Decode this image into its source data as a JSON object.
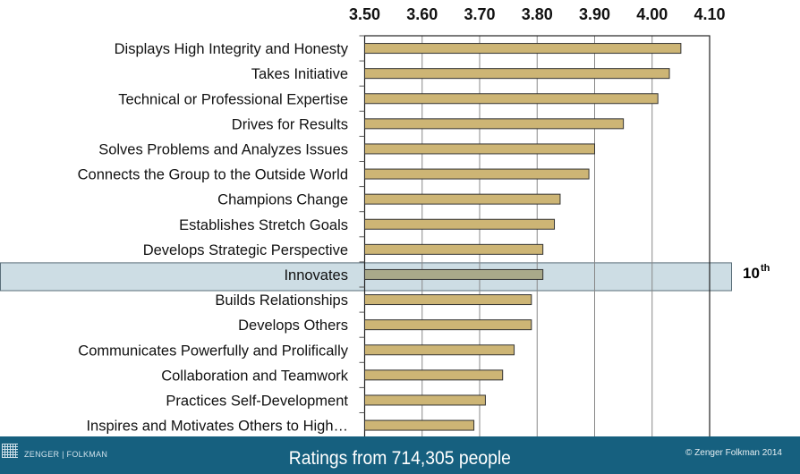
{
  "chart_data": {
    "type": "bar",
    "orientation": "horizontal",
    "categories": [
      "Displays High Integrity and Honesty",
      "Takes Initiative",
      "Technical or Professional Expertise",
      "Drives for Results",
      "Solves Problems and Analyzes Issues",
      "Connects the Group to the Outside World",
      "Champions Change",
      "Establishes Stretch Goals",
      "Develops Strategic Perspective",
      "Innovates",
      "Builds Relationships",
      "Develops Others",
      "Communicates Powerfully and Prolifically",
      "Collaboration and Teamwork",
      "Practices Self-Development",
      "Inspires and Motivates Others to High…"
    ],
    "values": [
      4.05,
      4.03,
      4.01,
      3.95,
      3.9,
      3.89,
      3.84,
      3.83,
      3.81,
      3.81,
      3.79,
      3.79,
      3.76,
      3.74,
      3.71,
      3.69
    ],
    "xlim": [
      3.5,
      4.1
    ],
    "ticks": [
      "3.50",
      "3.60",
      "3.70",
      "3.80",
      "3.90",
      "4.00",
      "4.10"
    ],
    "tick_values": [
      3.5,
      3.6,
      3.7,
      3.8,
      3.9,
      4.0,
      4.1
    ],
    "grid": true,
    "highlight": {
      "category_index": 9,
      "rank": "10",
      "rank_suffix": "th"
    },
    "colors": {
      "bar": "#cdb575",
      "highlight_band": "#cddde4",
      "highlight_bar": "#a9a98a"
    }
  },
  "footer": {
    "brand": "ZENGER | FOLKMAN",
    "subtitle": "Ratings from 714,305 people",
    "copyright": "© Zenger Folkman 2014"
  }
}
